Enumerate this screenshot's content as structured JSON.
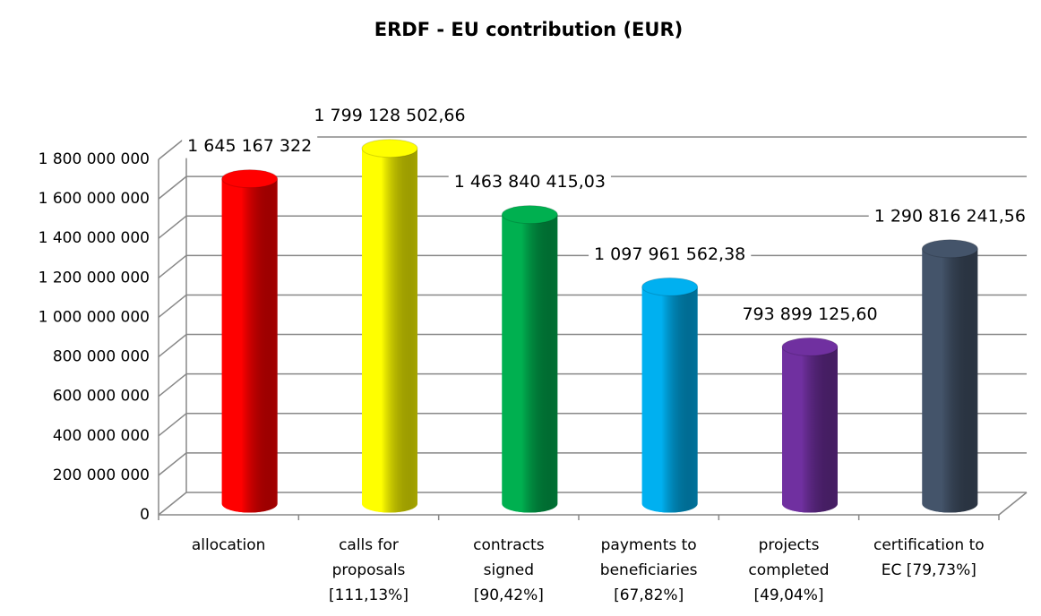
{
  "chart_data": {
    "type": "bar3d",
    "title": "ERDF - EU contribution (EUR)",
    "categories": [
      [
        "allocation"
      ],
      [
        "calls for",
        "proposals",
        "[111,13%]"
      ],
      [
        "contracts",
        "signed",
        "[90,42%]"
      ],
      [
        "payments to",
        "beneficiaries",
        "[67,82%]"
      ],
      [
        "projects",
        "completed",
        "[49,04%]"
      ],
      [
        "certification to",
        "EC [79,73%]"
      ]
    ],
    "values": [
      1645167322,
      1799128502.66,
      1463840415.03,
      1097961562.38,
      793899125.6,
      1290816241.56
    ],
    "value_labels": [
      "1 645 167 322",
      "1 799 128 502,66",
      "1 463 840 415,03",
      "1 097 961 562,38",
      "793 899 125,60",
      "1 290 816 241,56"
    ],
    "colors": [
      "#ff0000",
      "#ffff00",
      "#00b050",
      "#00b0f0",
      "#7030a0",
      "#44546a"
    ],
    "ylim": [
      0,
      1800000000
    ],
    "yticks": [
      0,
      {
        "value": 200000000,
        "label": "200 000 000"
      },
      {
        "value": 400000000,
        "label": "400 000 000"
      },
      {
        "value": 600000000,
        "label": "600 000 000"
      },
      {
        "value": 800000000,
        "label": "800 000 000"
      },
      {
        "value": 1000000000,
        "label": "1 000 000 000"
      },
      {
        "value": 1200000000,
        "label": "1 200 000 000"
      },
      {
        "value": 1400000000,
        "label": "1 400 000 000"
      },
      {
        "value": 1600000000,
        "label": "1 600 000 000"
      },
      {
        "value": 1800000000,
        "label": "1 800 000 000"
      }
    ],
    "grid": true
  }
}
